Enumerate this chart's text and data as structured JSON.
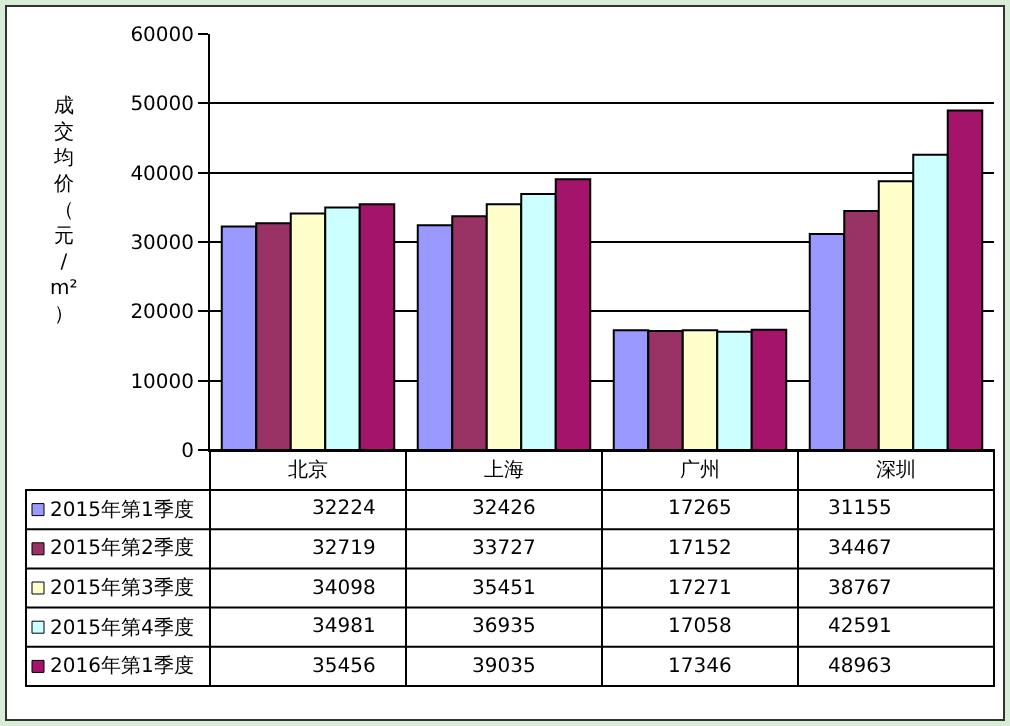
{
  "chart_data": {
    "type": "bar",
    "ylabel": "成交均价（元/m²）",
    "categories": [
      "北京",
      "上海",
      "广州",
      "深圳"
    ],
    "series": [
      {
        "name": "2015年第1季度",
        "color": "#9999ff",
        "values": [
          32224,
          32426,
          17265,
          31155
        ]
      },
      {
        "name": "2015年第2季度",
        "color": "#993366",
        "values": [
          32719,
          33727,
          17152,
          34467
        ]
      },
      {
        "name": "2015年第3季度",
        "color": "#ffffcc",
        "values": [
          34098,
          35451,
          17271,
          38767
        ]
      },
      {
        "name": "2015年第4季度",
        "color": "#ccffff",
        "values": [
          34981,
          36935,
          17058,
          42591
        ]
      },
      {
        "name": "2016年第1季度",
        "color": "#a5146b",
        "values": [
          35456,
          39035,
          17346,
          48963
        ]
      }
    ],
    "ylim": [
      0,
      60000
    ],
    "yticks": [
      0,
      10000,
      20000,
      30000,
      40000,
      50000,
      60000
    ],
    "grid": "y",
    "data_labels": true,
    "legend": "bottom"
  }
}
